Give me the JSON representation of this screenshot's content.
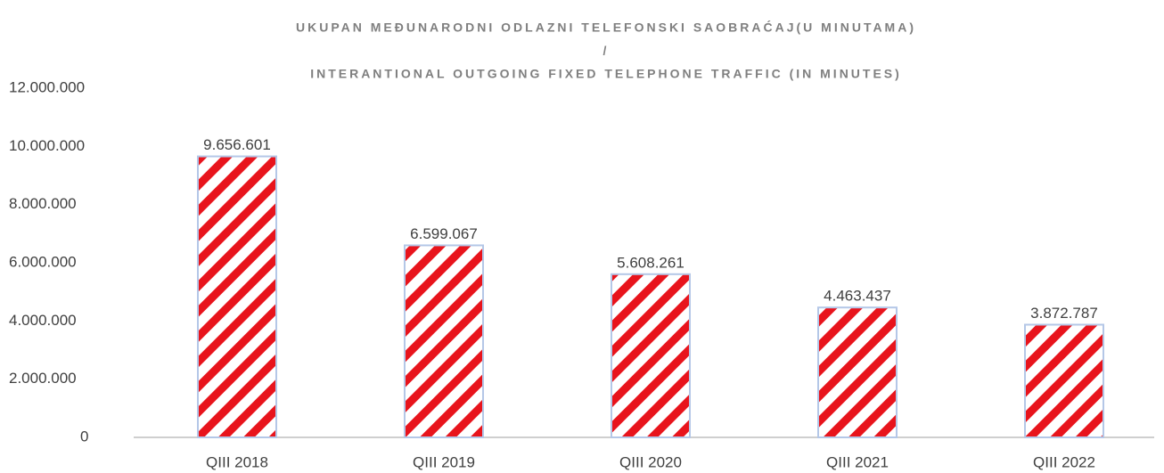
{
  "chart_data": {
    "type": "bar",
    "title": [
      "UKUPAN MEĐUNARODNI ODLAZNI TELEFONSKI SAOBRAĆAJ(U MINUTAMA)",
      "/",
      "INTERANTIONAL OUTGOING FIXED TELEPHONE TRAFFIC (IN MINUTES)"
    ],
    "categories": [
      "QIII 2018",
      "QIII 2019",
      "QIII 2020",
      "QIII 2021",
      "QIII 2022"
    ],
    "values": [
      9656601,
      6599067,
      5608261,
      4463437,
      3872787
    ],
    "value_labels": [
      "9.656.601",
      "6.599.067",
      "5.608.261",
      "4.463.437",
      "3.872.787"
    ],
    "color": "#e8141c",
    "ylim": [
      0,
      12000000
    ],
    "yticks": [
      0,
      {
        "value": 2000000,
        "label": "2.000.000"
      },
      {
        "value": 4000000,
        "label": "4.000.000"
      },
      {
        "value": 6000000,
        "label": "6.000.000"
      },
      {
        "value": 8000000,
        "label": "8.000.000"
      },
      {
        "value": 10000000,
        "label": "10.000.000"
      },
      {
        "value": 12000000,
        "label": "12.000.000"
      }
    ],
    "grid": false
  }
}
